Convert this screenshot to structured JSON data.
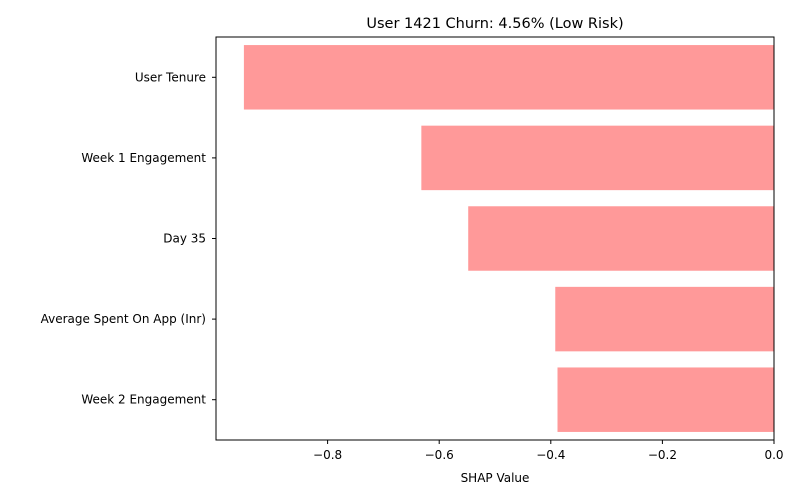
{
  "chart_data": {
    "type": "bar",
    "orientation": "horizontal",
    "title": "User 1421 Churn: 4.56% (Low Risk)",
    "xlabel": "SHAP Value",
    "ylabel": "",
    "categories": [
      "User Tenure",
      "Week 1 Engagement",
      "Day 35",
      "Average Spent On App (Inr)",
      "Week 2 Engagement"
    ],
    "values": [
      -0.95,
      -0.632,
      -0.548,
      -0.392,
      -0.388
    ],
    "xlim": [
      -1.0,
      0.0
    ],
    "xticks": [
      -0.8,
      -0.6,
      -0.4,
      -0.2,
      0.0
    ],
    "xtick_labels": [
      "−0.8",
      "−0.6",
      "−0.4",
      "−0.2",
      "0.0"
    ],
    "bar_color": "#ff9999",
    "grid": false,
    "legend": "none"
  }
}
